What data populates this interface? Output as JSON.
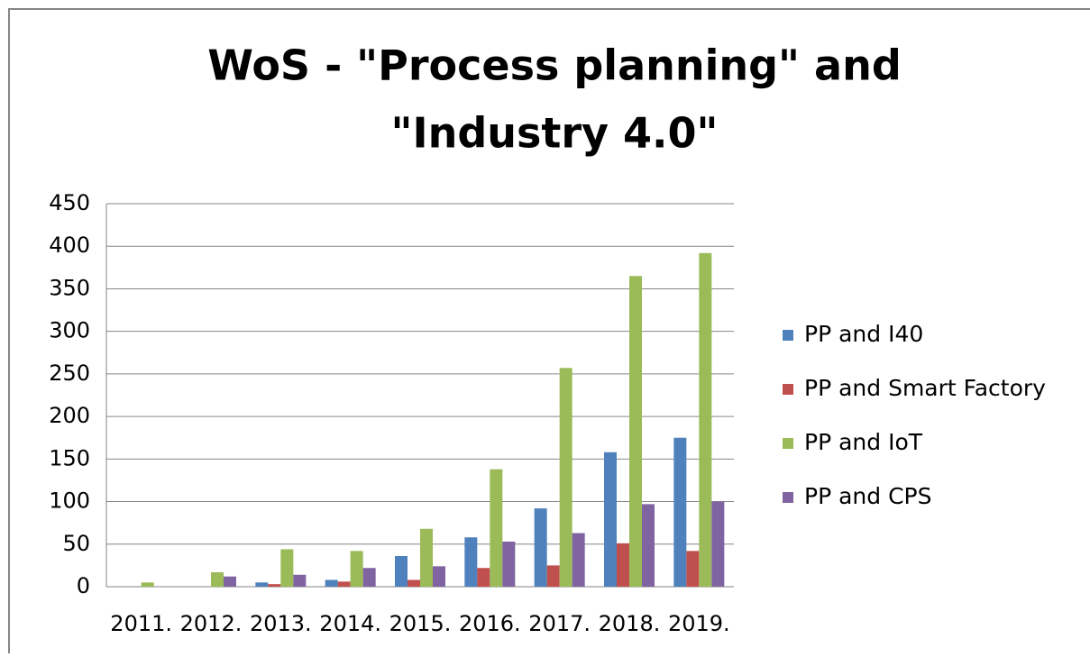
{
  "chart_data": {
    "type": "bar",
    "title": [
      "WoS - \"Process planning\" and",
      "\"Industry 4.0\""
    ],
    "categories": [
      "2011.",
      "2012.",
      "2013.",
      "2014.",
      "2015.",
      "2016.",
      "2017.",
      "2018.",
      "2019."
    ],
    "series": [
      {
        "name": "PP and I40",
        "color": "#4f81bd",
        "values": [
          0,
          0,
          5,
          8,
          36,
          58,
          92,
          158,
          175
        ]
      },
      {
        "name": "PP and Smart Factory",
        "color": "#c0504d",
        "values": [
          0,
          0,
          3,
          6,
          8,
          22,
          25,
          51,
          42
        ]
      },
      {
        "name": "PP and IoT",
        "color": "#9bbb59",
        "values": [
          5,
          17,
          44,
          42,
          68,
          138,
          257,
          365,
          392
        ]
      },
      {
        "name": "PP and CPS",
        "color": "#8064a2",
        "values": [
          0,
          12,
          14,
          22,
          24,
          53,
          63,
          97,
          100
        ]
      }
    ],
    "ylim": [
      0,
      450
    ],
    "yticks": [
      0,
      50,
      100,
      150,
      200,
      250,
      300,
      350,
      400,
      450
    ],
    "grid": true,
    "legend": "right"
  }
}
